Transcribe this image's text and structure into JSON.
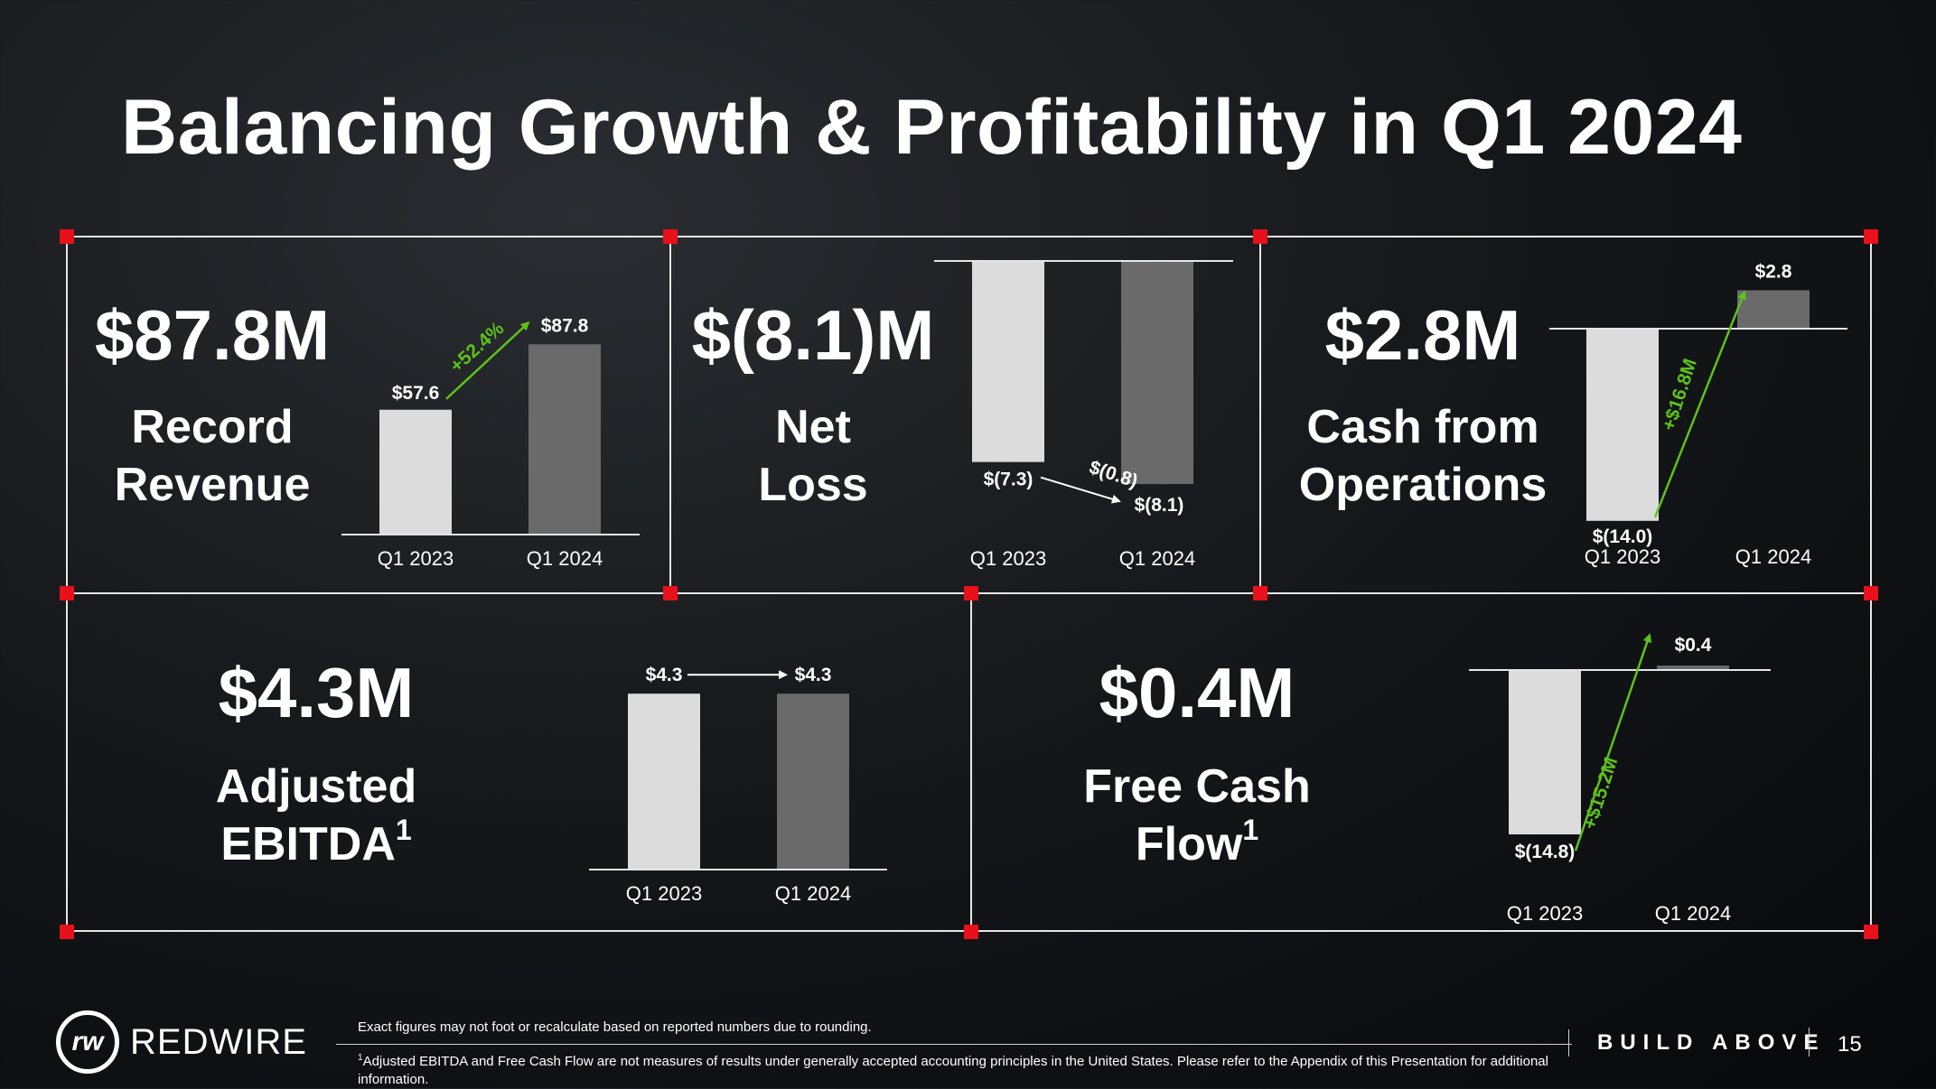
{
  "title": "Balancing Growth & Profitability in Q1 2024",
  "colors": {
    "accent": "#e8101a",
    "bar_light": "#dcdcdc",
    "bar_dark": "#6a6a6a",
    "growth": "#5ec11c",
    "border": "#e6e6e6"
  },
  "panels": {
    "revenue": {
      "value": "$87.8M",
      "label1": "Record",
      "label2": "Revenue"
    },
    "net_loss": {
      "value": "$(8.1)M",
      "label1": "Net",
      "label2": "Loss"
    },
    "cash_ops": {
      "value": "$2.8M",
      "label1": "Cash from",
      "label2": "Operations"
    },
    "ebitda": {
      "value": "$4.3M",
      "label1": "Adjusted",
      "label2": "EBITDA",
      "sup": "1"
    },
    "fcf": {
      "value": "$0.4M",
      "label1": "Free Cash",
      "label2": "Flow",
      "sup": "1"
    }
  },
  "chart_data": [
    {
      "id": "revenue",
      "type": "bar",
      "categories": [
        "Q1 2023",
        "Q1 2024"
      ],
      "values": [
        57.6,
        87.8
      ],
      "value_labels": [
        "$57.6",
        "$87.8"
      ],
      "change_label": "+52.4%",
      "title": "Record Revenue"
    },
    {
      "id": "net_loss",
      "type": "bar",
      "categories": [
        "Q1 2023",
        "Q1 2024"
      ],
      "values": [
        -7.3,
        -8.1
      ],
      "value_labels": [
        "$(7.3)",
        "$(8.1)"
      ],
      "change_label": "$(0.8)",
      "title": "Net Loss"
    },
    {
      "id": "cash_ops",
      "type": "bar",
      "categories": [
        "Q1 2023",
        "Q1 2024"
      ],
      "values": [
        -14.0,
        2.8
      ],
      "value_labels": [
        "$(14.0)",
        "$2.8"
      ],
      "change_label": "+$16.8M",
      "title": "Cash from Operations"
    },
    {
      "id": "ebitda",
      "type": "bar",
      "categories": [
        "Q1 2023",
        "Q1 2024"
      ],
      "values": [
        4.3,
        4.3
      ],
      "value_labels": [
        "$4.3",
        "$4.3"
      ],
      "change_label": "",
      "title": "Adjusted EBITDA"
    },
    {
      "id": "fcf",
      "type": "bar",
      "categories": [
        "Q1 2023",
        "Q1 2024"
      ],
      "values": [
        -14.8,
        0.4
      ],
      "value_labels": [
        "$(14.8)",
        "$0.4"
      ],
      "change_label": "+$15.2M",
      "title": "Free Cash Flow"
    }
  ],
  "footer": {
    "brand": "REDWIRE",
    "logo_mark": "rw",
    "note1": "Exact figures may not foot or recalculate based on reported numbers due to rounding.",
    "note2_sup": "1",
    "note2": "Adjusted EBITDA and Free Cash Flow are not measures of results under generally accepted accounting principles in the United States. Please refer to the Appendix of this Presentation for additional information.",
    "tagline": "BUILD ABOVE",
    "page": "15"
  }
}
